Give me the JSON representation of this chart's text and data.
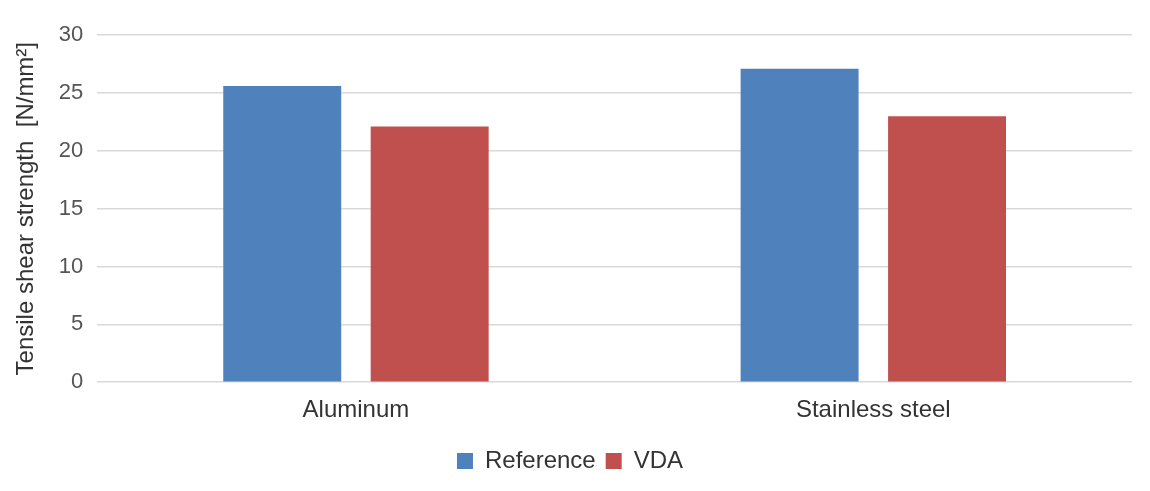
{
  "chart_data": {
    "type": "bar",
    "ylabel": "Tensile shear strength  [N/mm²]",
    "categories": [
      "Aluminum",
      "Stainless steel"
    ],
    "series": [
      {
        "name": "Reference",
        "color": "#4f81bd",
        "values": [
          25.6,
          27.1
        ]
      },
      {
        "name": "VDA",
        "color": "#c0504d",
        "values": [
          22.1,
          23.0
        ]
      }
    ],
    "ylim": [
      0,
      30
    ],
    "yticks": [
      0,
      5,
      10,
      15,
      20,
      25,
      30
    ],
    "grid": "y",
    "legend": "bottom"
  }
}
